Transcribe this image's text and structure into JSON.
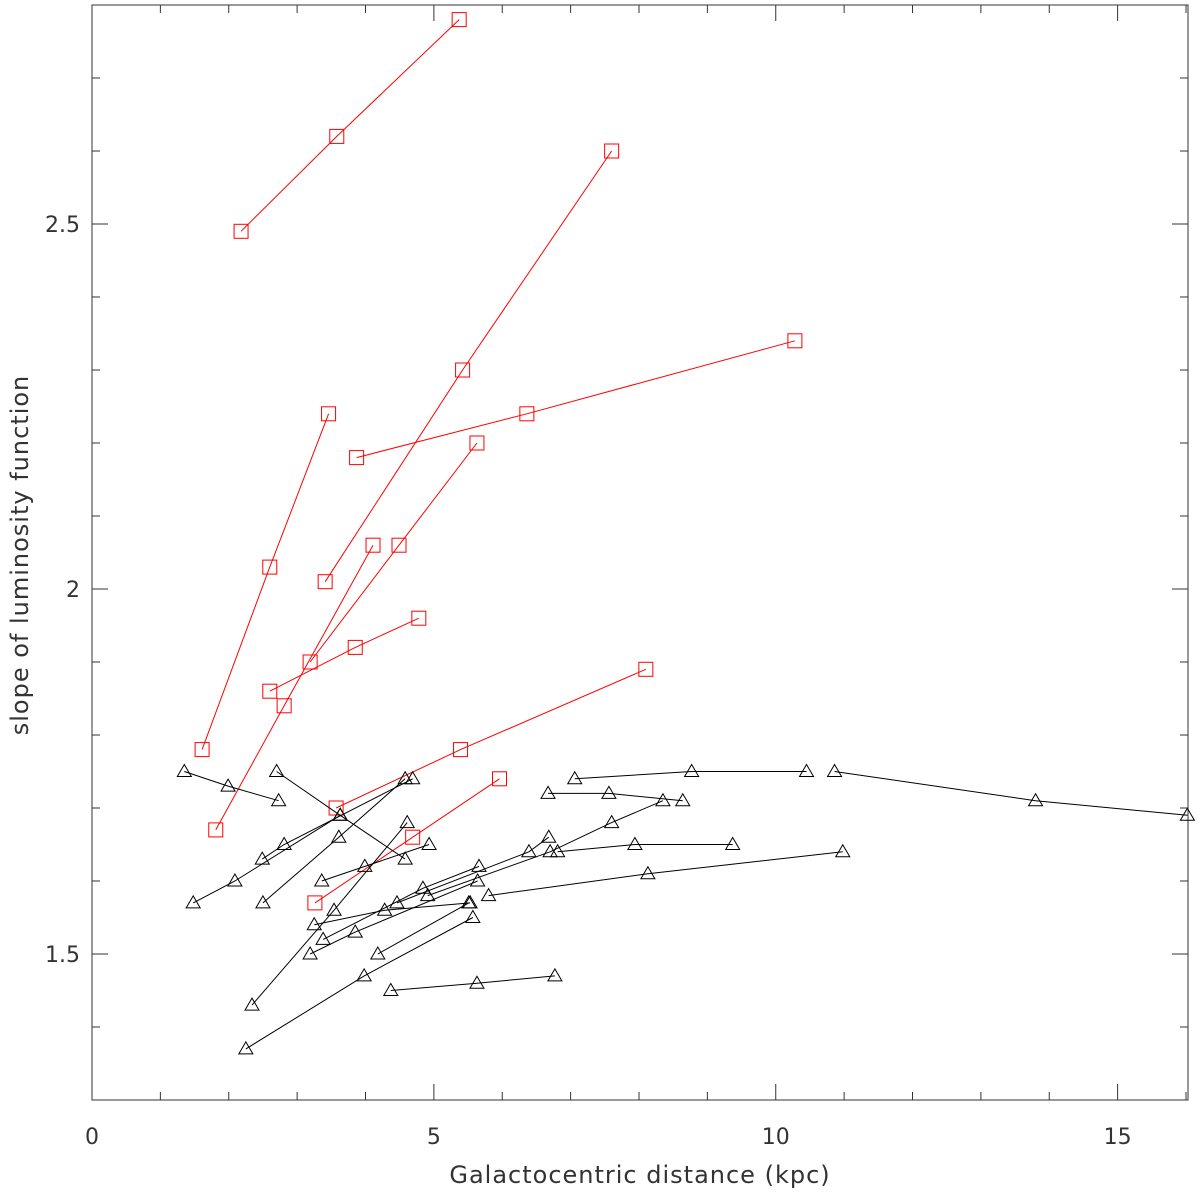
{
  "chart_data": {
    "type": "line",
    "xlabel": "Galactocentric distance (kpc)",
    "ylabel": "slope of luminosity function",
    "xlim": [
      0,
      16
    ],
    "ylim": [
      1.3,
      2.8
    ],
    "x_ticks": [
      0,
      5,
      10,
      15
    ],
    "y_ticks": [
      1.5,
      2,
      2.5
    ],
    "x_tick_labels": [
      "0",
      "5",
      "10",
      "15"
    ],
    "y_tick_labels": [
      "1.5",
      "2",
      "2.5"
    ],
    "grid": false,
    "colors": {
      "squares": "#ff0000",
      "triangles": "#000000"
    },
    "series": [
      {
        "marker": "square",
        "color": "#ff0000",
        "points": [
          [
            2.18,
            2.49
          ],
          [
            3.58,
            2.62
          ],
          [
            5.37,
            2.78
          ]
        ]
      },
      {
        "marker": "square",
        "color": "#ff0000",
        "points": [
          [
            7.6,
            2.6
          ],
          [
            5.42,
            2.3
          ],
          [
            3.41,
            2.01
          ]
        ]
      },
      {
        "marker": "square",
        "color": "#ff0000",
        "points": [
          [
            10.28,
            2.34
          ],
          [
            6.36,
            2.24
          ],
          [
            3.87,
            2.18
          ]
        ]
      },
      {
        "marker": "square",
        "color": "#ff0000",
        "points": [
          [
            3.46,
            2.24
          ],
          [
            2.6,
            2.03
          ],
          [
            1.61,
            1.78
          ]
        ]
      },
      {
        "marker": "square",
        "color": "#ff0000",
        "points": [
          [
            5.63,
            2.2
          ],
          [
            4.49,
            2.06
          ],
          [
            3.19,
            1.9
          ]
        ]
      },
      {
        "marker": "square",
        "color": "#ff0000",
        "points": [
          [
            4.11,
            2.06
          ],
          [
            2.81,
            1.84
          ],
          [
            1.81,
            1.67
          ]
        ]
      },
      {
        "marker": "square",
        "color": "#ff0000",
        "points": [
          [
            4.78,
            1.96
          ],
          [
            3.85,
            1.92
          ],
          [
            2.6,
            1.86
          ]
        ]
      },
      {
        "marker": "square",
        "color": "#ff0000",
        "points": [
          [
            8.1,
            1.89
          ],
          [
            5.39,
            1.78
          ],
          [
            3.57,
            1.7
          ]
        ]
      },
      {
        "marker": "square",
        "color": "#ff0000",
        "points": [
          [
            5.96,
            1.74
          ],
          [
            4.69,
            1.66
          ],
          [
            3.26,
            1.57
          ]
        ]
      },
      {
        "marker": "triangle",
        "color": "#000000",
        "points": [
          [
            1.35,
            1.75
          ],
          [
            1.99,
            1.73
          ],
          [
            2.73,
            1.71
          ]
        ]
      },
      {
        "marker": "triangle",
        "color": "#000000",
        "points": [
          [
            2.7,
            1.75
          ],
          [
            3.63,
            1.69
          ],
          [
            4.58,
            1.63
          ]
        ]
      },
      {
        "marker": "triangle",
        "color": "#000000",
        "points": [
          [
            1.48,
            1.57
          ],
          [
            2.09,
            1.6
          ],
          [
            3.63,
            1.69
          ]
        ]
      },
      {
        "marker": "triangle",
        "color": "#000000",
        "points": [
          [
            2.49,
            1.63
          ],
          [
            2.81,
            1.65
          ],
          [
            4.69,
            1.74
          ]
        ]
      },
      {
        "marker": "triangle",
        "color": "#000000",
        "points": [
          [
            2.5,
            1.57
          ],
          [
            3.61,
            1.66
          ],
          [
            4.58,
            1.74
          ]
        ]
      },
      {
        "marker": "triangle",
        "color": "#000000",
        "points": [
          [
            2.34,
            1.43
          ],
          [
            3.54,
            1.56
          ],
          [
            4.61,
            1.68
          ]
        ]
      },
      {
        "marker": "triangle",
        "color": "#000000",
        "points": [
          [
            3.36,
            1.6
          ],
          [
            3.99,
            1.62
          ],
          [
            4.93,
            1.65
          ]
        ]
      },
      {
        "marker": "triangle",
        "color": "#000000",
        "points": [
          [
            2.25,
            1.37
          ],
          [
            3.98,
            1.47
          ],
          [
            5.57,
            1.55
          ]
        ]
      },
      {
        "marker": "triangle",
        "color": "#000000",
        "points": [
          [
            4.18,
            1.5
          ],
          [
            5.51,
            1.57
          ]
        ]
      },
      {
        "marker": "triangle",
        "color": "#000000",
        "points": [
          [
            6.67,
            1.72
          ],
          [
            7.56,
            1.72
          ],
          [
            8.64,
            1.71
          ]
        ]
      },
      {
        "marker": "triangle",
        "color": "#000000",
        "points": [
          [
            7.06,
            1.74
          ],
          [
            8.77,
            1.75
          ],
          [
            10.45,
            1.75
          ]
        ]
      },
      {
        "marker": "triangle",
        "color": "#000000",
        "points": [
          [
            10.86,
            1.75
          ],
          [
            13.8,
            1.71
          ],
          [
            16.02,
            1.69
          ]
        ]
      },
      {
        "marker": "triangle",
        "color": "#000000",
        "points": [
          [
            6.81,
            1.64
          ],
          [
            7.94,
            1.65
          ],
          [
            9.37,
            1.65
          ]
        ]
      },
      {
        "marker": "triangle",
        "color": "#000000",
        "points": [
          [
            5.8,
            1.58
          ],
          [
            8.13,
            1.61
          ],
          [
            10.98,
            1.64
          ]
        ]
      },
      {
        "marker": "triangle",
        "color": "#000000",
        "points": [
          [
            3.25,
            1.54
          ],
          [
            4.28,
            1.56
          ],
          [
            5.53,
            1.57
          ]
        ]
      },
      {
        "marker": "triangle",
        "color": "#000000",
        "points": [
          [
            3.38,
            1.52
          ],
          [
            4.84,
            1.59
          ],
          [
            5.66,
            1.62
          ]
        ]
      },
      {
        "marker": "triangle",
        "color": "#000000",
        "points": [
          [
            3.19,
            1.5
          ],
          [
            3.85,
            1.53
          ],
          [
            5.64,
            1.6
          ]
        ]
      },
      {
        "marker": "triangle",
        "color": "#000000",
        "points": [
          [
            4.46,
            1.57
          ],
          [
            6.39,
            1.64
          ],
          [
            6.68,
            1.66
          ]
        ]
      },
      {
        "marker": "triangle",
        "color": "#000000",
        "points": [
          [
            4.91,
            1.58
          ],
          [
            6.7,
            1.64
          ],
          [
            7.6,
            1.68
          ],
          [
            8.35,
            1.71
          ]
        ]
      },
      {
        "marker": "triangle",
        "color": "#000000",
        "points": [
          [
            4.37,
            1.45
          ],
          [
            5.63,
            1.46
          ],
          [
            6.77,
            1.47
          ]
        ]
      }
    ]
  }
}
